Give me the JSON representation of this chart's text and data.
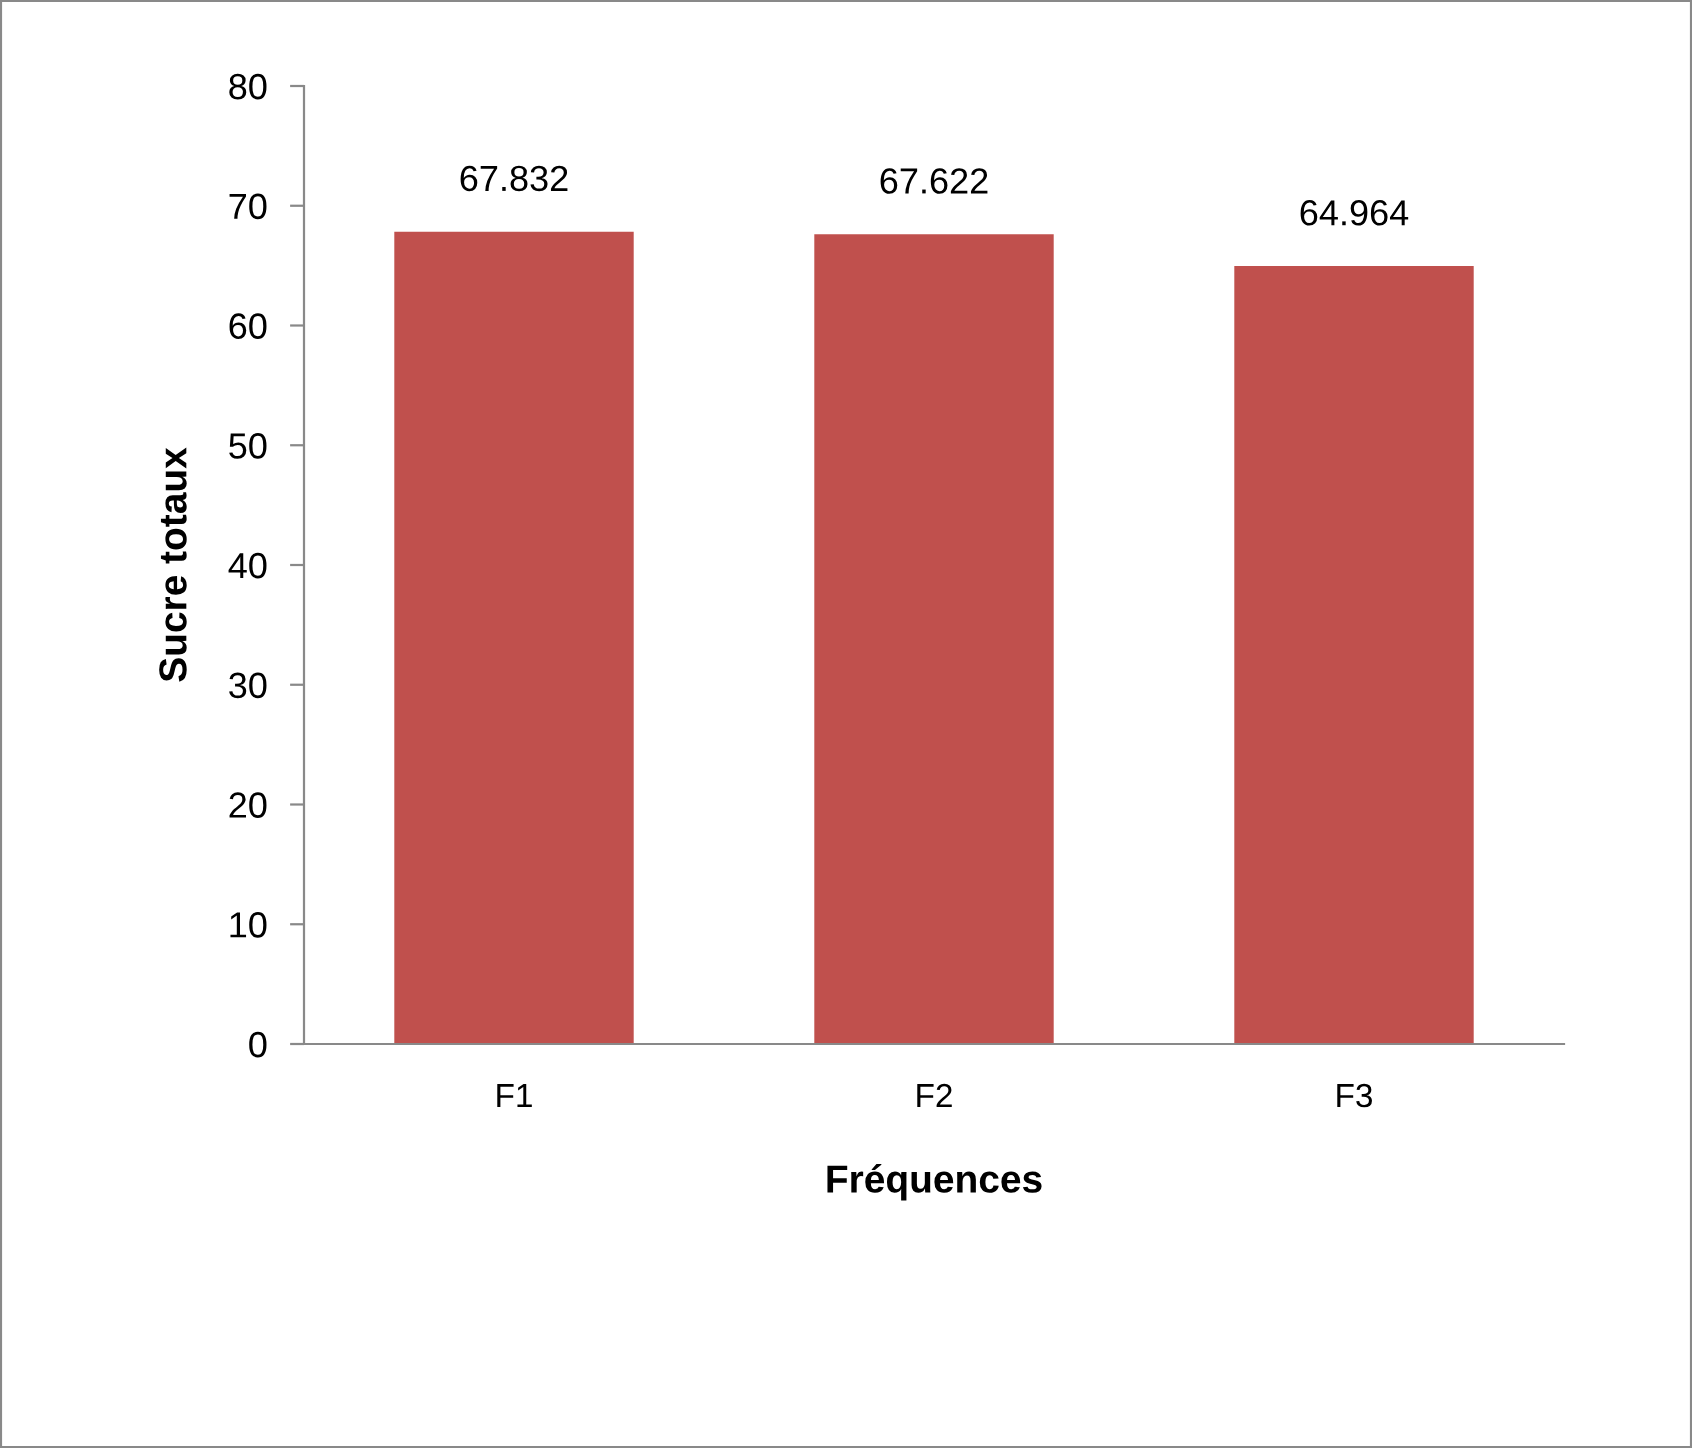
{
  "chart_data": {
    "type": "bar",
    "xlabel": "Fréquences",
    "ylabel": "Sucre totaux",
    "categories": [
      "F1",
      "F2",
      "F3"
    ],
    "values": [
      67.832,
      67.622,
      64.964
    ],
    "color": "#c0504d",
    "ylim": [
      0,
      80
    ],
    "yticks": [
      0,
      10,
      20,
      30,
      40,
      50,
      60,
      70,
      80
    ],
    "data_labels": true,
    "grid": false,
    "legend": false
  }
}
